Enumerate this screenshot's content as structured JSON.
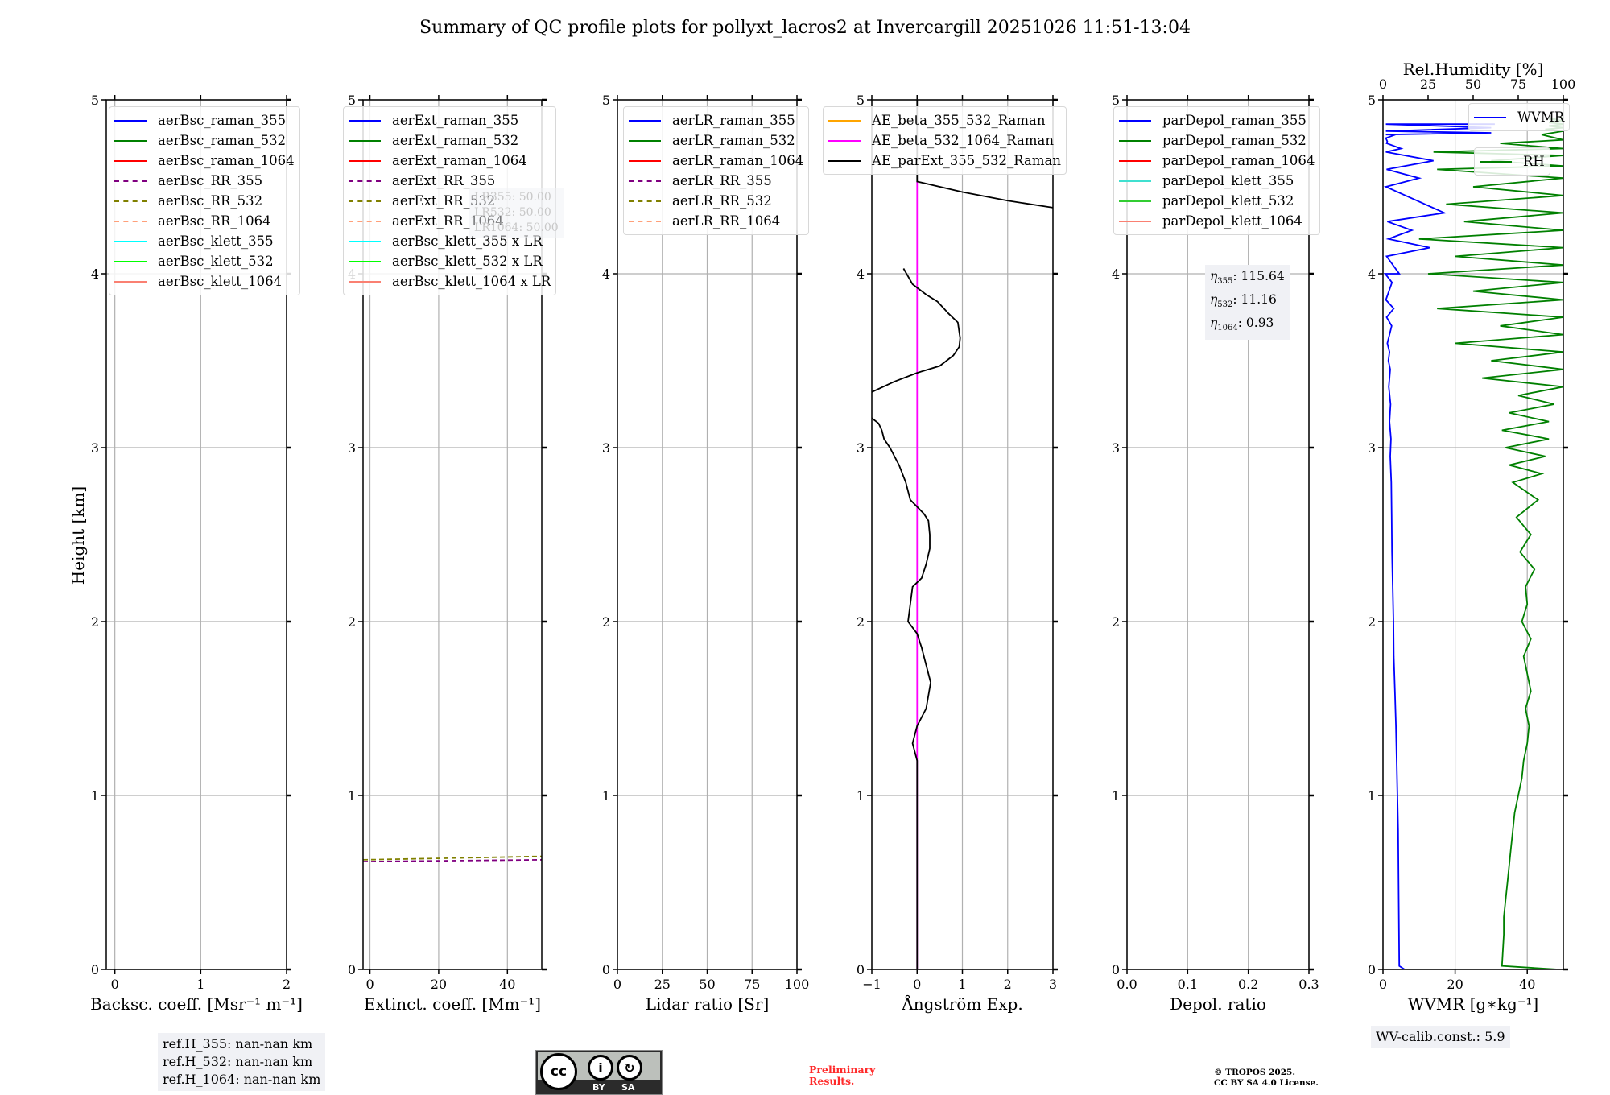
{
  "title": "Summary of QC profile plots for pollyxt_lacros2 at Invercargill 20251026 11:51-13:04",
  "ylabel": "Height [km]",
  "ref_heights": [
    "ref.H_355: nan-nan km",
    "ref.H_532: nan-nan km",
    "ref.H_1064: nan-nan km"
  ],
  "lr_box": [
    "LR355: 50.00",
    "LR532: 50.00",
    "LR1064: 50.00"
  ],
  "eta_box": [
    {
      "sym": "η",
      "sub": "355",
      "val": ": 115.64"
    },
    {
      "sym": "η",
      "sub": "532",
      "val": ": 11.16"
    },
    {
      "sym": "η",
      "sub": "1064",
      "val": ": 0.93"
    }
  ],
  "wv_calib": "WV-calib.const.: 5.9",
  "license_logo": {
    "by": "BY",
    "sa": "SA",
    "cc": "cc"
  },
  "preliminary": [
    "Preliminary",
    "Results."
  ],
  "copyright": [
    "© TROPOS 2025.",
    "CC BY SA 4.0 License."
  ],
  "colors": {
    "grid": "#b0b0b0",
    "infobox": "#f0f1f5",
    "prelim": "#ff2a2a"
  },
  "chart_data": [
    {
      "type": "line",
      "xlabel": "Backsc. coeff. [Msr⁻¹ m⁻¹]",
      "ylabel": "Height [km]",
      "xlim": [
        -0.1,
        2
      ],
      "ylim": [
        0,
        5
      ],
      "xticks": [
        0,
        1,
        2
      ],
      "yticks": [
        0,
        1,
        2,
        3,
        4,
        5
      ],
      "grid": true,
      "legend_placement": "top-left",
      "legend": [
        {
          "label": "aerBsc_raman_355",
          "color": "#0000ff",
          "dash": false
        },
        {
          "label": "aerBsc_raman_532",
          "color": "#008000",
          "dash": false
        },
        {
          "label": "aerBsc_raman_1064",
          "color": "#ff0000",
          "dash": false
        },
        {
          "label": "aerBsc_RR_355",
          "color": "#800080",
          "dash": true
        },
        {
          "label": "aerBsc_RR_532",
          "color": "#808000",
          "dash": true
        },
        {
          "label": "aerBsc_RR_1064",
          "color": "#ffa07a",
          "dash": true
        },
        {
          "label": "aerBsc_klett_355",
          "color": "#00ffff",
          "dash": false
        },
        {
          "label": "aerBsc_klett_532",
          "color": "#00ff00",
          "dash": false
        },
        {
          "label": "aerBsc_klett_1064",
          "color": "#fa8072",
          "dash": false
        }
      ],
      "series": []
    },
    {
      "type": "line",
      "xlabel": "Extinct. coeff. [Mm⁻¹]",
      "ylabel": "",
      "xlim": [
        -2,
        50
      ],
      "ylim": [
        0,
        5
      ],
      "xticks": [
        0,
        20,
        40
      ],
      "yticks": [
        0,
        1,
        2,
        3,
        4,
        5
      ],
      "grid": true,
      "legend_placement": "top-left",
      "legend": [
        {
          "label": "aerExt_raman_355",
          "color": "#0000ff",
          "dash": false
        },
        {
          "label": "aerExt_raman_532",
          "color": "#008000",
          "dash": false
        },
        {
          "label": "aerExt_raman_1064",
          "color": "#ff0000",
          "dash": false
        },
        {
          "label": "aerExt_RR_355",
          "color": "#800080",
          "dash": true
        },
        {
          "label": "aerExt_RR_532",
          "color": "#808000",
          "dash": true
        },
        {
          "label": "aerExt_RR_1064",
          "color": "#ffa07a",
          "dash": true
        },
        {
          "label": "aerBsc_klett_355 x LR",
          "color": "#00ffff",
          "dash": false
        },
        {
          "label": "aerBsc_klett_532 x LR",
          "color": "#00ff00",
          "dash": false
        },
        {
          "label": "aerBsc_klett_1064 x LR",
          "color": "#fa8072",
          "dash": false
        }
      ],
      "series": [
        {
          "name": "aerExt_RR_532",
          "color": "#808000",
          "dash": true,
          "x": [
            -2,
            50
          ],
          "y": [
            0.63,
            0.65
          ]
        },
        {
          "name": "aerExt_RR_355",
          "color": "#800080",
          "dash": true,
          "x": [
            -2,
            50
          ],
          "y": [
            0.62,
            0.63
          ]
        }
      ]
    },
    {
      "type": "line",
      "xlabel": "Lidar ratio [Sr]",
      "ylabel": "",
      "xlim": [
        0,
        100
      ],
      "ylim": [
        0,
        5
      ],
      "xticks": [
        0,
        25,
        50,
        75,
        100
      ],
      "yticks": [
        0,
        1,
        2,
        3,
        4,
        5
      ],
      "grid": true,
      "legend_placement": "top-left",
      "legend": [
        {
          "label": "aerLR_raman_355",
          "color": "#0000ff",
          "dash": false
        },
        {
          "label": "aerLR_raman_532",
          "color": "#008000",
          "dash": false
        },
        {
          "label": "aerLR_raman_1064",
          "color": "#ff0000",
          "dash": false
        },
        {
          "label": "aerLR_RR_355",
          "color": "#800080",
          "dash": true
        },
        {
          "label": "aerLR_RR_532",
          "color": "#808000",
          "dash": true
        },
        {
          "label": "aerLR_RR_1064",
          "color": "#ffa07a",
          "dash": true
        }
      ],
      "series": []
    },
    {
      "type": "line",
      "xlabel": "Ångström Exp.",
      "ylabel": "",
      "xlim": [
        -1,
        3
      ],
      "ylim": [
        0,
        5
      ],
      "xticks": [
        -1,
        0,
        1,
        2,
        3
      ],
      "xticklabels": [
        "−1",
        "0",
        "1",
        "2",
        "3"
      ],
      "yticks": [
        0,
        1,
        2,
        3,
        4,
        5
      ],
      "grid": true,
      "legend_placement": "top-left",
      "legend": [
        {
          "label": "AE_beta_355_532_Raman",
          "color": "#ffa500",
          "dash": false
        },
        {
          "label": "AE_beta_532_1064_Raman",
          "color": "#ff00ff",
          "dash": false
        },
        {
          "label": "AE_parExt_355_532_Raman",
          "color": "#000000",
          "dash": false
        }
      ],
      "series": [
        {
          "name": "AE_beta_532_1064_Raman",
          "color": "#ff00ff",
          "dash": false,
          "x": [
            0,
            0
          ],
          "y": [
            0,
            4.53
          ]
        },
        {
          "name": "AE_parExt_355_532_Raman",
          "color": "#000000",
          "dash": false,
          "x": [
            0,
            0,
            0,
            0,
            -0.1,
            0,
            0.2,
            0.3,
            0.2,
            0.1,
            0,
            -0.2,
            -0.15,
            -0.1,
            0.1,
            0.2,
            0.28,
            0.28,
            0.25,
            0.15,
            -0.15,
            -0.25,
            -0.4,
            -0.6,
            -0.73,
            -0.78,
            -0.85,
            -1,
            null,
            -1,
            -0.5,
            0,
            0.5,
            0.8,
            0.93,
            0.95,
            0.9,
            0.7,
            0.45,
            0.2,
            -0.1,
            -0.3,
            null,
            3,
            2,
            1,
            0,
            0
          ],
          "y": [
            0,
            0.9,
            1.05,
            1.2,
            1.3,
            1.4,
            1.5,
            1.65,
            1.75,
            1.85,
            1.93,
            2.0,
            2.1,
            2.2,
            2.25,
            2.33,
            2.42,
            2.5,
            2.58,
            2.62,
            2.7,
            2.8,
            2.9,
            3.0,
            3.05,
            3.1,
            3.14,
            3.17,
            null,
            3.32,
            3.38,
            3.43,
            3.47,
            3.53,
            3.58,
            3.63,
            3.72,
            3.77,
            3.84,
            3.88,
            3.94,
            4.03,
            null,
            4.38,
            4.42,
            4.47,
            4.53,
            5
          ]
        }
      ]
    },
    {
      "type": "line",
      "xlabel": "Depol. ratio",
      "ylabel": "",
      "xlim": [
        0,
        0.3
      ],
      "ylim": [
        0,
        5
      ],
      "xticks": [
        0,
        0.1,
        0.2,
        0.3
      ],
      "xticklabels": [
        "0.0",
        "0.1",
        "0.2",
        "0.3"
      ],
      "yticks": [
        0,
        1,
        2,
        3,
        4,
        5
      ],
      "grid": true,
      "legend_placement": "top-left",
      "legend": [
        {
          "label": "parDepol_raman_355",
          "color": "#0000ff",
          "dash": false
        },
        {
          "label": "parDepol_raman_532",
          "color": "#008000",
          "dash": false
        },
        {
          "label": "parDepol_raman_1064",
          "color": "#ff0000",
          "dash": false
        },
        {
          "label": "parDepol_klett_355",
          "color": "#40e0d0",
          "dash": false
        },
        {
          "label": "parDepol_klett_532",
          "color": "#32cd32",
          "dash": false
        },
        {
          "label": "parDepol_klett_1064",
          "color": "#fa8072",
          "dash": false
        }
      ],
      "series": []
    },
    {
      "type": "line",
      "xlabel": "WVMR [g∗kg⁻¹]",
      "ylabel": "",
      "xlim": [
        0,
        50
      ],
      "ylim": [
        0,
        5
      ],
      "xticks": [
        0,
        20,
        40
      ],
      "yticks": [
        0,
        1,
        2,
        3,
        4,
        5
      ],
      "grid": true,
      "top_axis": {
        "label": "Rel.Humidity [%]",
        "xlim": [
          0,
          100
        ],
        "xticks": [
          0,
          25,
          50,
          75,
          100
        ]
      },
      "legend": [
        {
          "label": "WVMR",
          "color": "#0000ff",
          "dash": false,
          "placement": "top-right"
        },
        {
          "label": "RH",
          "color": "#008000",
          "dash": false,
          "placement": "upper-right-below"
        }
      ],
      "series": [
        {
          "name": "WVMR",
          "axis": "bottom",
          "color": "#0000ff",
          "dash": false,
          "x": [
            6,
            4.5,
            4.3,
            4.2,
            4.0,
            3.8,
            3.6,
            3.3,
            3.0,
            2.9,
            2.7,
            2.5,
            2.4,
            2.3,
            2.0,
            2.2,
            1.8,
            2.1,
            1.6,
            2.0,
            1.5,
            1.8,
            1.2,
            2.4,
            1.0,
            3.0,
            0.8,
            2.5,
            0.6,
            4.5,
            1.0,
            13,
            1.5,
            8,
            1.2,
            17,
            0.8,
            10,
            1.0,
            14,
            0.8,
            5,
            1.0,
            1.2,
            0.8,
            3.5,
            0.8,
            30,
            0.8,
            30,
            0.8,
            31
          ],
          "y": [
            0,
            0.02,
            0.5,
            0.8,
            1.0,
            1.2,
            1.4,
            1.6,
            1.8,
            2.0,
            2.2,
            2.4,
            2.6,
            2.8,
            2.95,
            3.05,
            3.15,
            3.25,
            3.35,
            3.45,
            3.5,
            3.55,
            3.6,
            3.7,
            3.75,
            3.8,
            3.85,
            3.95,
            4.0,
            4.0,
            4.1,
            4.15,
            4.2,
            4.25,
            4.3,
            4.35,
            4.5,
            4.55,
            4.6,
            4.65,
            4.7,
            4.72,
            4.75,
            4.76,
            4.78,
            4.8,
            4.8,
            4.81,
            4.82,
            4.84,
            4.86,
            4.86
          ]
        },
        {
          "name": "RH",
          "axis": "top",
          "color": "#008000",
          "dash": false,
          "x": [
            97,
            66,
            67,
            67,
            68,
            69,
            70,
            71,
            72,
            73,
            75,
            77,
            78,
            80,
            81,
            79,
            82,
            80,
            78,
            82,
            77,
            80,
            79,
            84,
            76,
            82,
            74,
            86,
            72,
            88,
            70,
            90,
            68,
            92,
            66,
            92,
            70,
            95,
            75,
            100,
            55,
            100,
            60,
            100,
            40,
            100,
            65,
            100,
            30,
            100,
            50,
            100,
            25,
            100,
            40,
            100,
            20,
            100,
            45,
            100,
            35,
            100,
            50,
            100,
            30,
            100,
            60,
            100,
            28,
            100,
            65,
            100,
            88,
            100,
            90,
            100,
            92,
            100,
            92,
            100,
            92,
            100
          ],
          "y": [
            0,
            0.02,
            0.2,
            0.3,
            0.4,
            0.5,
            0.6,
            0.7,
            0.8,
            0.9,
            1.0,
            1.1,
            1.2,
            1.3,
            1.4,
            1.5,
            1.6,
            1.7,
            1.8,
            1.9,
            2.0,
            2.1,
            2.2,
            2.3,
            2.4,
            2.5,
            2.6,
            2.7,
            2.8,
            2.85,
            2.9,
            2.95,
            3.0,
            3.05,
            3.1,
            3.15,
            3.2,
            3.25,
            3.3,
            3.35,
            3.4,
            3.45,
            3.5,
            3.55,
            3.6,
            3.65,
            3.7,
            3.75,
            3.8,
            3.85,
            3.9,
            3.95,
            4.0,
            4.05,
            4.1,
            4.15,
            4.2,
            4.25,
            4.3,
            4.35,
            4.4,
            4.45,
            4.5,
            4.55,
            4.6,
            4.62,
            4.65,
            4.68,
            4.7,
            4.72,
            4.75,
            4.77,
            4.8,
            4.82,
            4.83,
            4.84,
            4.85,
            4.86,
            4.87,
            4.88,
            4.89,
            4.9
          ]
        }
      ]
    }
  ]
}
